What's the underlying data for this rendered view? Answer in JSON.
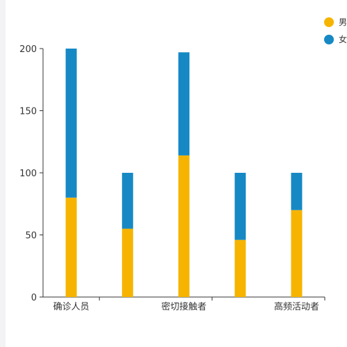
{
  "chart_data": {
    "type": "bar",
    "stacked": true,
    "categories": [
      "确诊人员",
      "",
      "密切接触者",
      "",
      "高频活动者"
    ],
    "series": [
      {
        "name": "男",
        "color": "#f6b400",
        "values": [
          80,
          55,
          114,
          46,
          70
        ]
      },
      {
        "name": "女",
        "color": "#1689c5",
        "values": [
          120,
          45,
          83,
          54,
          30
        ]
      }
    ],
    "ylim": [
      0,
      200
    ],
    "yticks": [
      0,
      50,
      100,
      150,
      200
    ],
    "legend": "top-right",
    "grid": false,
    "title": "",
    "xlabel": "",
    "ylabel": ""
  }
}
